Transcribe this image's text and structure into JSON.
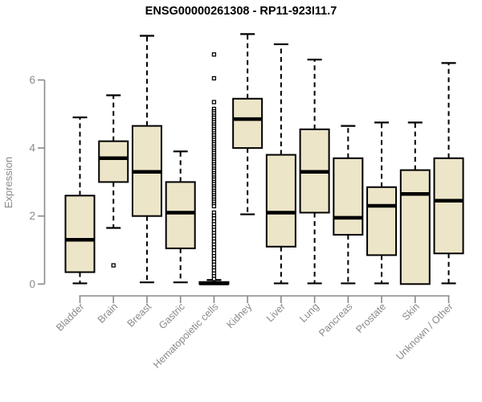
{
  "chart_data": {
    "type": "boxplot",
    "title": "ENSG00000261308 - RP11-923I11.7",
    "ylabel": "Expression",
    "yticks": [
      0,
      2,
      4,
      6
    ],
    "ylim": [
      0,
      7.6
    ],
    "grid": false,
    "legend": "none",
    "categories": [
      "Bladder",
      "Brain",
      "Breast",
      "Gastric",
      "Hematopoietic cells",
      "Kidney",
      "Liver",
      "Lung",
      "Pancreas",
      "Prostate",
      "Skin",
      "Unknown / Other"
    ],
    "boxes": [
      {
        "category": "Bladder",
        "whisker_low": 0.02,
        "q1": 0.35,
        "median": 1.3,
        "q3": 2.6,
        "whisker_high": 4.9,
        "outliers": []
      },
      {
        "category": "Brain",
        "whisker_low": 1.65,
        "q1": 3.0,
        "median": 3.7,
        "q3": 4.2,
        "whisker_high": 5.55,
        "outliers": [
          0.55
        ]
      },
      {
        "category": "Breast",
        "whisker_low": 0.05,
        "q1": 2.0,
        "median": 3.3,
        "q3": 4.65,
        "whisker_high": 7.3,
        "outliers": []
      },
      {
        "category": "Gastric",
        "whisker_low": 0.05,
        "q1": 1.05,
        "median": 2.1,
        "q3": 3.0,
        "whisker_high": 3.9,
        "outliers": []
      },
      {
        "category": "Hematopoietic cells",
        "whisker_low": 0.0,
        "q1": 0.0,
        "median": 0.02,
        "q3": 0.06,
        "whisker_high": 0.12,
        "outliers": [
          6.75,
          6.05,
          5.35,
          5.15,
          5.08,
          5.02,
          4.95,
          4.89,
          4.82,
          4.76,
          4.69,
          4.63,
          4.56,
          4.5,
          4.43,
          4.37,
          4.3,
          4.24,
          4.17,
          4.11,
          4.04,
          3.98,
          3.91,
          3.85,
          3.78,
          3.72,
          3.65,
          3.59,
          3.52,
          3.46,
          3.39,
          3.33,
          3.26,
          3.2,
          3.13,
          3.07,
          3.0,
          2.94,
          2.87,
          2.81,
          2.74,
          2.68,
          2.61,
          2.55,
          2.48,
          2.42,
          2.35,
          2.29,
          2.1,
          2.01,
          1.93,
          1.84,
          1.76,
          1.67,
          1.59,
          1.5,
          1.42,
          1.33,
          1.25,
          1.16,
          1.08,
          0.99,
          0.91,
          0.82,
          0.74,
          0.65,
          0.57,
          0.48,
          0.4,
          0.31,
          0.23,
          0.15
        ]
      },
      {
        "category": "Kidney",
        "whisker_low": 2.05,
        "q1": 4.0,
        "median": 4.85,
        "q3": 5.45,
        "whisker_high": 7.35,
        "outliers": []
      },
      {
        "category": "Liver",
        "whisker_low": 0.02,
        "q1": 1.1,
        "median": 2.1,
        "q3": 3.8,
        "whisker_high": 7.05,
        "outliers": []
      },
      {
        "category": "Lung",
        "whisker_low": 0.02,
        "q1": 2.1,
        "median": 3.3,
        "q3": 4.55,
        "whisker_high": 6.6,
        "outliers": []
      },
      {
        "category": "Pancreas",
        "whisker_low": 0.02,
        "q1": 1.45,
        "median": 1.95,
        "q3": 3.7,
        "whisker_high": 4.65,
        "outliers": []
      },
      {
        "category": "Prostate",
        "whisker_low": 0.02,
        "q1": 0.85,
        "median": 2.3,
        "q3": 2.85,
        "whisker_high": 4.75,
        "outliers": []
      },
      {
        "category": "Skin",
        "whisker_low": 0.0,
        "q1": 0.0,
        "median": 2.65,
        "q3": 3.35,
        "whisker_high": 4.75,
        "outliers": []
      },
      {
        "category": "Unknown / Other",
        "whisker_low": 0.02,
        "q1": 0.9,
        "median": 2.45,
        "q3": 3.7,
        "whisker_high": 6.5,
        "outliers": []
      }
    ],
    "colors": {
      "box_fill": "#ece5c8",
      "box_border": "#000000",
      "median": "#000000",
      "whisker": "#000000",
      "outlier_stroke": "#000000",
      "outlier_fill": "#ffffff",
      "axis_line": "#8a8a8a",
      "tick_label": "#8a8a8a",
      "axis_title": "#8a8a8a",
      "title": "#000000",
      "background": "#ffffff"
    }
  }
}
